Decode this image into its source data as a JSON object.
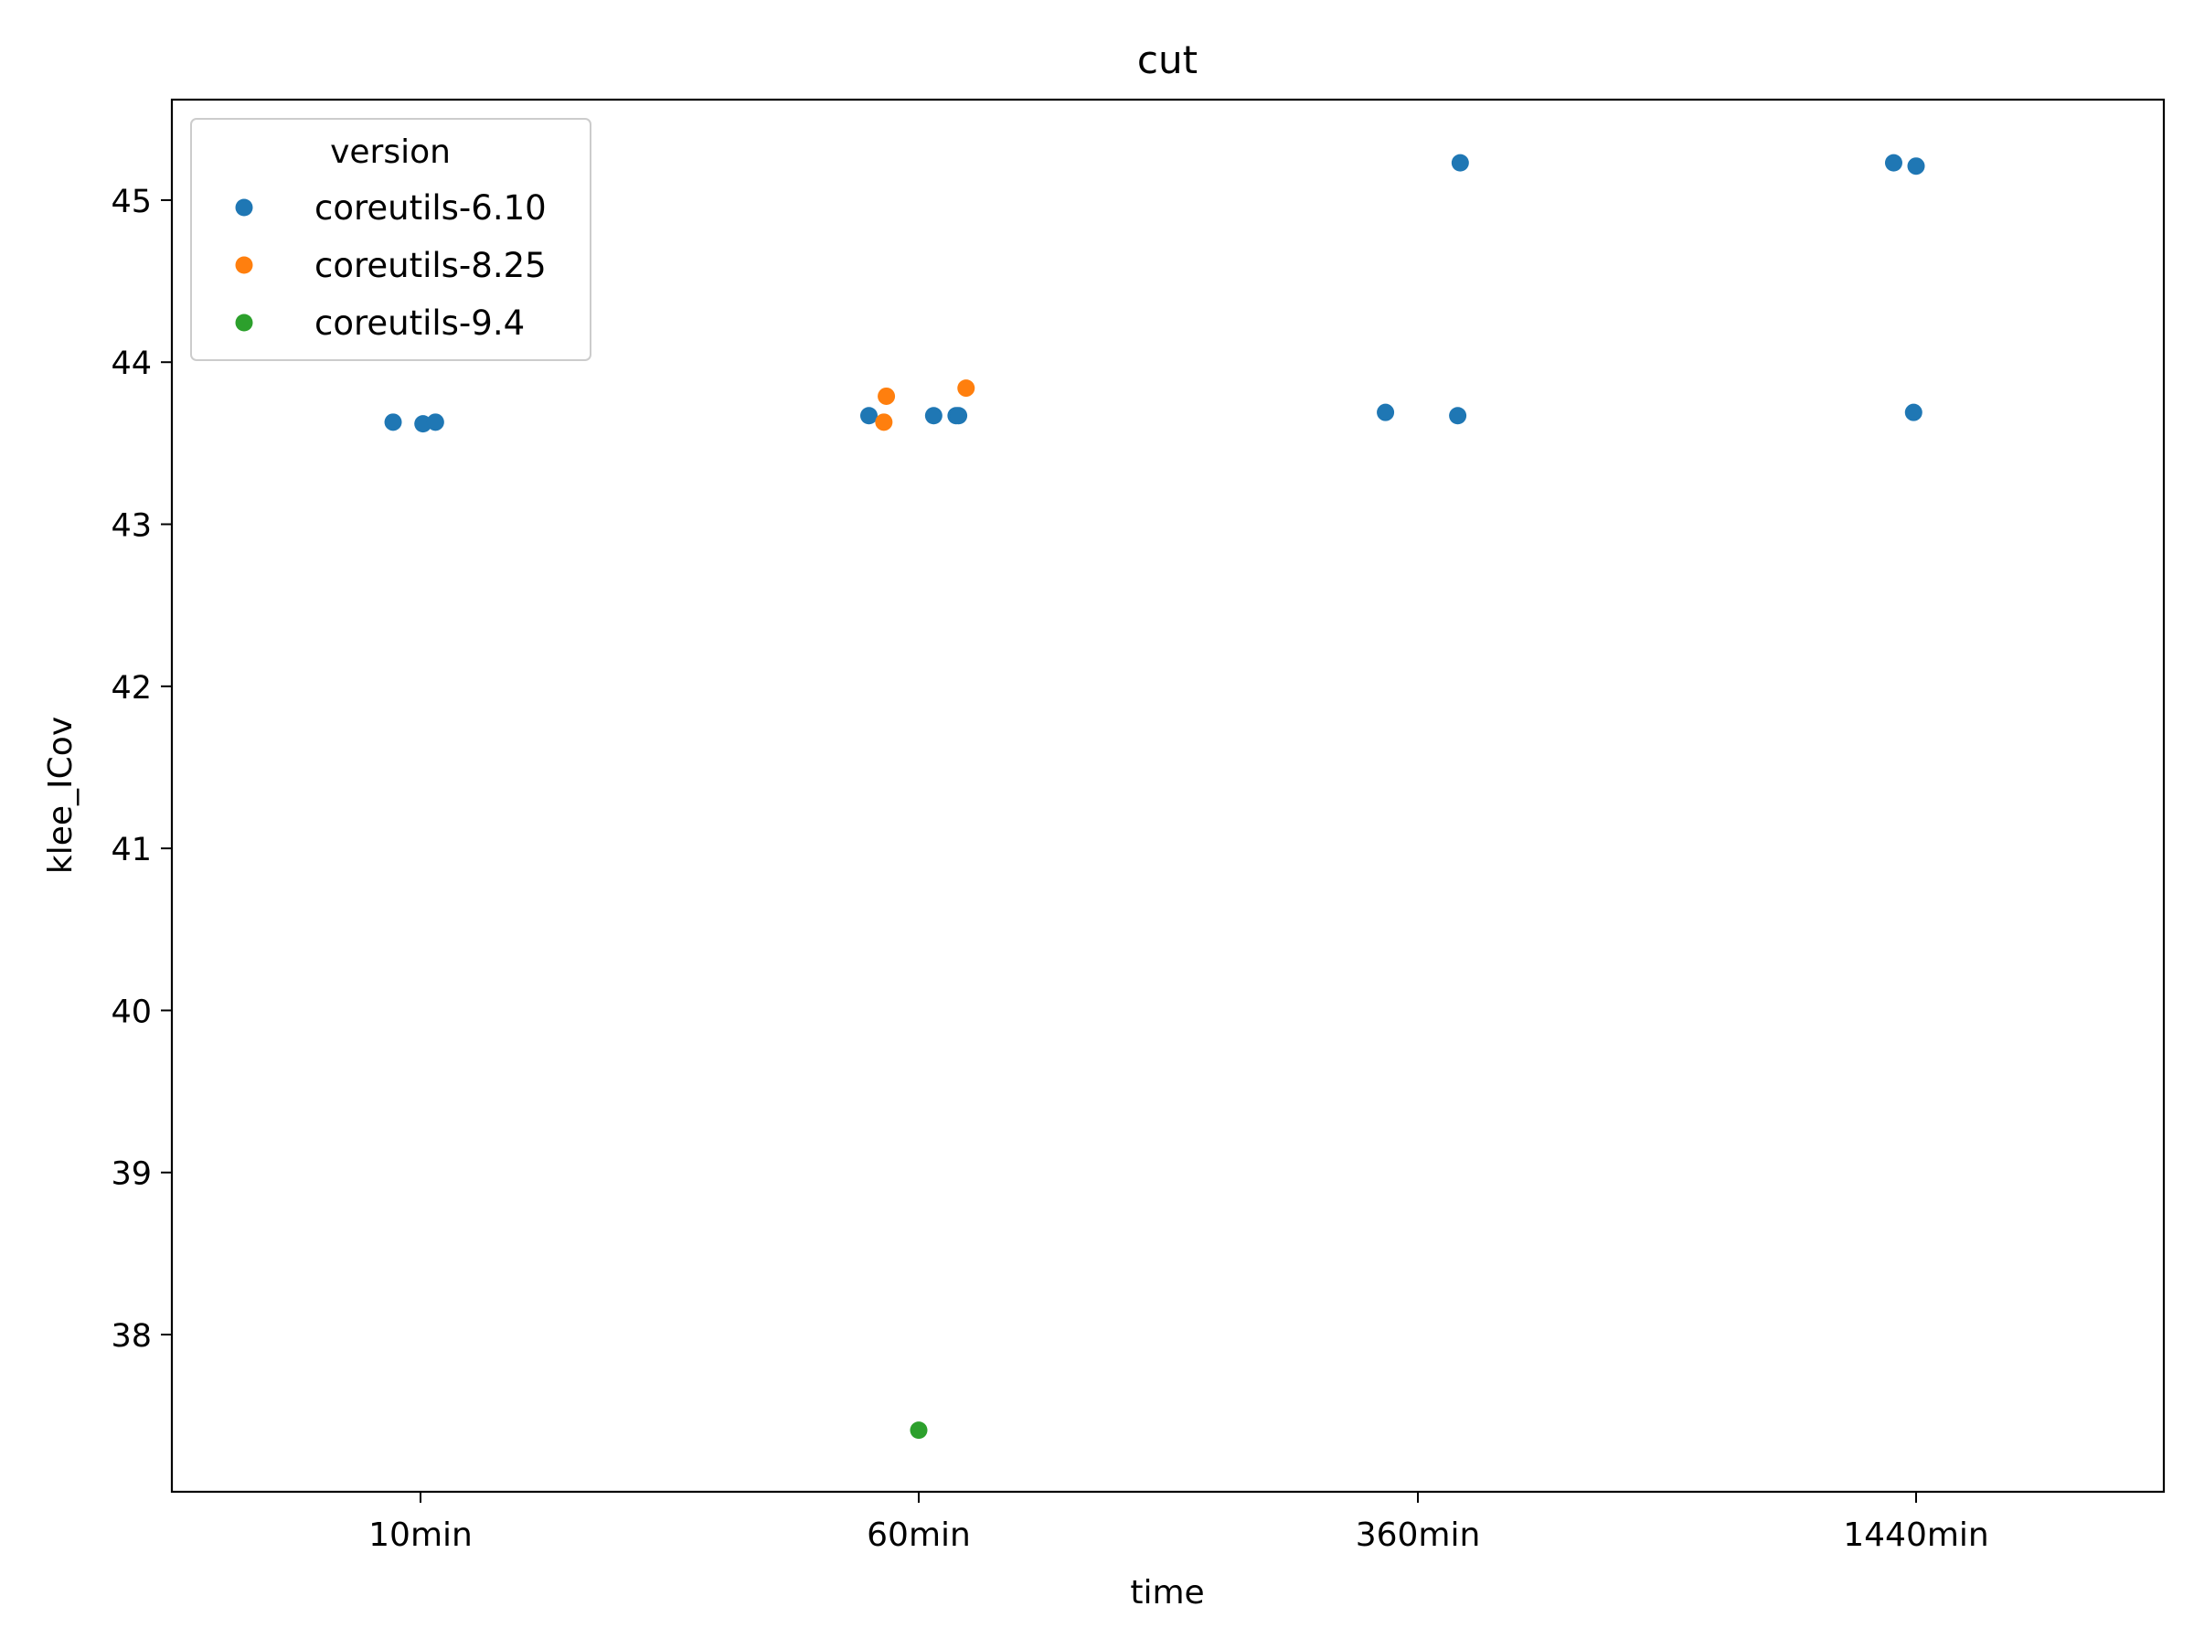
{
  "chart_data": {
    "type": "scatter",
    "title": "cut",
    "xlabel": "time",
    "ylabel": "klee_ICov",
    "categories": [
      "10min",
      "60min",
      "360min",
      "1440min"
    ],
    "ylim": [
      37.03,
      45.62
    ],
    "yticks": [
      38,
      39,
      40,
      41,
      42,
      43,
      44,
      45
    ],
    "grid": false,
    "legend": {
      "title": "version",
      "placement": "top-left"
    },
    "series": [
      {
        "name": "coreutils-6.10",
        "color": "#1f77b4",
        "points": [
          {
            "x": "10min",
            "jitter": -0.055,
            "y": 43.63
          },
          {
            "x": "10min",
            "jitter": 0.005,
            "y": 43.62
          },
          {
            "x": "10min",
            "jitter": 0.03,
            "y": 43.63
          },
          {
            "x": "60min",
            "jitter": -0.1,
            "y": 43.67
          },
          {
            "x": "60min",
            "jitter": 0.03,
            "y": 43.67
          },
          {
            "x": "60min",
            "jitter": 0.075,
            "y": 43.67
          },
          {
            "x": "60min",
            "jitter": 0.08,
            "y": 43.67
          },
          {
            "x": "360min",
            "jitter": -0.065,
            "y": 43.69
          },
          {
            "x": "360min",
            "jitter": 0.085,
            "y": 45.23
          },
          {
            "x": "360min",
            "jitter": 0.08,
            "y": 43.67
          },
          {
            "x": "1440min",
            "jitter": -0.045,
            "y": 45.23
          },
          {
            "x": "1440min",
            "jitter": 0.0,
            "y": 45.21
          },
          {
            "x": "1440min",
            "jitter": -0.005,
            "y": 43.69
          }
        ]
      },
      {
        "name": "coreutils-8.25",
        "color": "#ff7f0e",
        "points": [
          {
            "x": "60min",
            "jitter": -0.065,
            "y": 43.79
          },
          {
            "x": "60min",
            "jitter": -0.07,
            "y": 43.63
          },
          {
            "x": "60min",
            "jitter": 0.095,
            "y": 43.84
          }
        ]
      },
      {
        "name": "coreutils-9.4",
        "color": "#2ca02c",
        "points": [
          {
            "x": "60min",
            "jitter": 0.0,
            "y": 37.41
          }
        ]
      }
    ]
  }
}
